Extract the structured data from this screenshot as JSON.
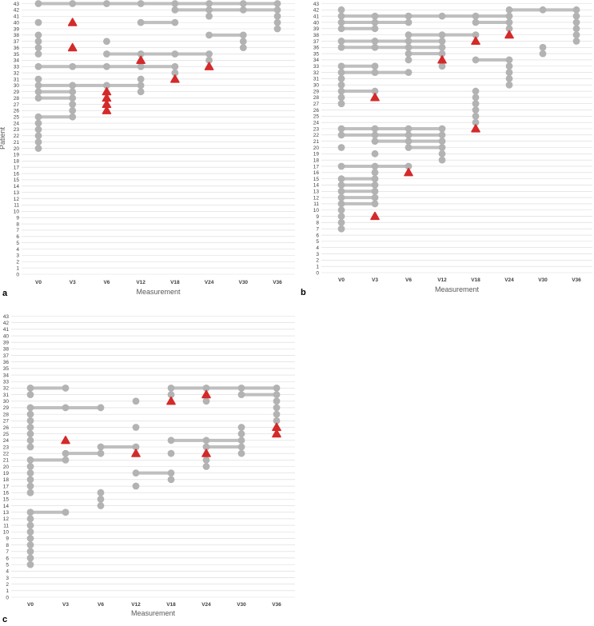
{
  "chart_data": [
    {
      "type": "scatter",
      "panel_label": "a",
      "ylabel": "Patient",
      "xlabel": "Measurement",
      "categories": [
        "V0",
        "V3",
        "V6",
        "V12",
        "V18",
        "V24",
        "V30",
        "V36"
      ],
      "ylim": [
        0,
        43
      ],
      "segments": [
        [
          43,
          0,
          7
        ],
        [
          42,
          4,
          7
        ],
        [
          40,
          3,
          4
        ],
        [
          38,
          5,
          6
        ],
        [
          35,
          2,
          5
        ],
        [
          33,
          0,
          4
        ],
        [
          30,
          0,
          3
        ],
        [
          29,
          0,
          1
        ],
        [
          28,
          0,
          1
        ],
        [
          25,
          0,
          1
        ]
      ],
      "points": [
        [
          43,
          0
        ],
        [
          43,
          1
        ],
        [
          43,
          2
        ],
        [
          43,
          3
        ],
        [
          43,
          4
        ],
        [
          43,
          5
        ],
        [
          43,
          6
        ],
        [
          43,
          7
        ],
        [
          42,
          4
        ],
        [
          42,
          5
        ],
        [
          42,
          6
        ],
        [
          42,
          7
        ],
        [
          41,
          5
        ],
        [
          41,
          7
        ],
        [
          40,
          0
        ],
        [
          40,
          3
        ],
        [
          40,
          4
        ],
        [
          40,
          7
        ],
        [
          39,
          7
        ],
        [
          38,
          0
        ],
        [
          38,
          5
        ],
        [
          38,
          6
        ],
        [
          37,
          0
        ],
        [
          37,
          2
        ],
        [
          37,
          6
        ],
        [
          36,
          0
        ],
        [
          36,
          6
        ],
        [
          35,
          0
        ],
        [
          35,
          2
        ],
        [
          35,
          3
        ],
        [
          35,
          4
        ],
        [
          35,
          5
        ],
        [
          34,
          5
        ],
        [
          33,
          0
        ],
        [
          33,
          1
        ],
        [
          33,
          2
        ],
        [
          33,
          3
        ],
        [
          33,
          4
        ],
        [
          32,
          4
        ],
        [
          31,
          0
        ],
        [
          31,
          3
        ],
        [
          30,
          0
        ],
        [
          30,
          1
        ],
        [
          30,
          2
        ],
        [
          30,
          3
        ],
        [
          29,
          0
        ],
        [
          29,
          1
        ],
        [
          29,
          3
        ],
        [
          28,
          0
        ],
        [
          28,
          1
        ],
        [
          27,
          1
        ],
        [
          26,
          1
        ],
        [
          25,
          0
        ],
        [
          25,
          1
        ],
        [
          24,
          0
        ],
        [
          23,
          0
        ],
        [
          22,
          0
        ],
        [
          21,
          0
        ],
        [
          20,
          0
        ]
      ],
      "events": [
        [
          40,
          1
        ],
        [
          36,
          1
        ],
        [
          34,
          3
        ],
        [
          33,
          5
        ],
        [
          31,
          4
        ],
        [
          29,
          2
        ],
        [
          28,
          2
        ],
        [
          27,
          2
        ],
        [
          26,
          2
        ]
      ]
    },
    {
      "type": "scatter",
      "panel_label": "b",
      "ylabel": "",
      "xlabel": "Measurement",
      "categories": [
        "V0",
        "V3",
        "V6",
        "V12",
        "V18",
        "V24",
        "V30",
        "V36"
      ],
      "ylim": [
        0,
        43
      ],
      "segments": [
        [
          42,
          5,
          7
        ],
        [
          41,
          0,
          5
        ],
        [
          40,
          0,
          2
        ],
        [
          40,
          4,
          5
        ],
        [
          39,
          0,
          1
        ],
        [
          38,
          2,
          4
        ],
        [
          37,
          0,
          3
        ],
        [
          36,
          0,
          3
        ],
        [
          35,
          2,
          3
        ],
        [
          34,
          4,
          5
        ],
        [
          33,
          0,
          1
        ],
        [
          32,
          0,
          2
        ],
        [
          29,
          0,
          1
        ],
        [
          23,
          0,
          3
        ],
        [
          22,
          0,
          3
        ],
        [
          21,
          1,
          3
        ],
        [
          20,
          2,
          3
        ],
        [
          17,
          0,
          2
        ],
        [
          15,
          0,
          1
        ],
        [
          14,
          0,
          1
        ],
        [
          13,
          0,
          1
        ],
        [
          12,
          0,
          1
        ],
        [
          11,
          0,
          1
        ]
      ],
      "points": [
        [
          42,
          0
        ],
        [
          42,
          5
        ],
        [
          42,
          6
        ],
        [
          42,
          7
        ],
        [
          41,
          0
        ],
        [
          41,
          1
        ],
        [
          41,
          2
        ],
        [
          41,
          3
        ],
        [
          41,
          4
        ],
        [
          41,
          5
        ],
        [
          41,
          7
        ],
        [
          40,
          0
        ],
        [
          40,
          1
        ],
        [
          40,
          2
        ],
        [
          40,
          4
        ],
        [
          40,
          5
        ],
        [
          40,
          7
        ],
        [
          39,
          0
        ],
        [
          39,
          1
        ],
        [
          39,
          5
        ],
        [
          39,
          7
        ],
        [
          38,
          2
        ],
        [
          38,
          3
        ],
        [
          38,
          4
        ],
        [
          38,
          7
        ],
        [
          37,
          0
        ],
        [
          37,
          1
        ],
        [
          37,
          2
        ],
        [
          37,
          3
        ],
        [
          37,
          7
        ],
        [
          36,
          0
        ],
        [
          36,
          1
        ],
        [
          36,
          2
        ],
        [
          36,
          3
        ],
        [
          36,
          6
        ],
        [
          35,
          2
        ],
        [
          35,
          3
        ],
        [
          35,
          6
        ],
        [
          34,
          2
        ],
        [
          34,
          4
        ],
        [
          34,
          5
        ],
        [
          33,
          0
        ],
        [
          33,
          1
        ],
        [
          33,
          3
        ],
        [
          33,
          5
        ],
        [
          32,
          0
        ],
        [
          32,
          1
        ],
        [
          32,
          2
        ],
        [
          32,
          5
        ],
        [
          31,
          0
        ],
        [
          31,
          5
        ],
        [
          30,
          0
        ],
        [
          30,
          5
        ],
        [
          29,
          0
        ],
        [
          29,
          1
        ],
        [
          29,
          4
        ],
        [
          28,
          0
        ],
        [
          28,
          4
        ],
        [
          27,
          0
        ],
        [
          27,
          4
        ],
        [
          26,
          4
        ],
        [
          25,
          4
        ],
        [
          24,
          4
        ],
        [
          23,
          0
        ],
        [
          23,
          1
        ],
        [
          23,
          2
        ],
        [
          23,
          3
        ],
        [
          22,
          0
        ],
        [
          22,
          1
        ],
        [
          22,
          2
        ],
        [
          22,
          3
        ],
        [
          21,
          1
        ],
        [
          21,
          2
        ],
        [
          21,
          3
        ],
        [
          20,
          0
        ],
        [
          20,
          2
        ],
        [
          20,
          3
        ],
        [
          19,
          1
        ],
        [
          19,
          3
        ],
        [
          18,
          3
        ],
        [
          17,
          0
        ],
        [
          17,
          1
        ],
        [
          17,
          2
        ],
        [
          16,
          1
        ],
        [
          15,
          0
        ],
        [
          15,
          1
        ],
        [
          14,
          0
        ],
        [
          14,
          1
        ],
        [
          13,
          0
        ],
        [
          13,
          1
        ],
        [
          12,
          0
        ],
        [
          12,
          1
        ],
        [
          11,
          0
        ],
        [
          11,
          1
        ],
        [
          10,
          0
        ],
        [
          9,
          0
        ],
        [
          8,
          0
        ],
        [
          7,
          0
        ]
      ],
      "events": [
        [
          38,
          5
        ],
        [
          37,
          4
        ],
        [
          34,
          3
        ],
        [
          28,
          1
        ],
        [
          23,
          4
        ],
        [
          16,
          2
        ],
        [
          9,
          1
        ]
      ]
    },
    {
      "type": "scatter",
      "panel_label": "c",
      "ylabel": "",
      "xlabel": "Measurement",
      "categories": [
        "V0",
        "V3",
        "V6",
        "V12",
        "V18",
        "V24",
        "V30",
        "V36"
      ],
      "ylim": [
        0,
        43
      ],
      "segments": [
        [
          32,
          0,
          1
        ],
        [
          32,
          4,
          7
        ],
        [
          31,
          6,
          7
        ],
        [
          29,
          0,
          2
        ],
        [
          24,
          4,
          6
        ],
        [
          23,
          2,
          3
        ],
        [
          23,
          5,
          6
        ],
        [
          22,
          1,
          2
        ],
        [
          21,
          0,
          1
        ],
        [
          19,
          3,
          4
        ],
        [
          13,
          0,
          1
        ]
      ],
      "points": [
        [
          32,
          0
        ],
        [
          32,
          1
        ],
        [
          32,
          4
        ],
        [
          32,
          5
        ],
        [
          32,
          6
        ],
        [
          32,
          7
        ],
        [
          31,
          0
        ],
        [
          31,
          4
        ],
        [
          31,
          6
        ],
        [
          31,
          7
        ],
        [
          30,
          3
        ],
        [
          30,
          5
        ],
        [
          30,
          7
        ],
        [
          29,
          0
        ],
        [
          29,
          1
        ],
        [
          29,
          2
        ],
        [
          29,
          7
        ],
        [
          28,
          0
        ],
        [
          28,
          7
        ],
        [
          27,
          0
        ],
        [
          27,
          7
        ],
        [
          26,
          0
        ],
        [
          26,
          3
        ],
        [
          26,
          6
        ],
        [
          25,
          0
        ],
        [
          25,
          6
        ],
        [
          24,
          0
        ],
        [
          24,
          4
        ],
        [
          24,
          5
        ],
        [
          24,
          6
        ],
        [
          23,
          0
        ],
        [
          23,
          2
        ],
        [
          23,
          3
        ],
        [
          23,
          5
        ],
        [
          23,
          6
        ],
        [
          22,
          1
        ],
        [
          22,
          2
        ],
        [
          22,
          4
        ],
        [
          22,
          6
        ],
        [
          21,
          0
        ],
        [
          21,
          1
        ],
        [
          21,
          5
        ],
        [
          20,
          0
        ],
        [
          20,
          5
        ],
        [
          19,
          0
        ],
        [
          19,
          3
        ],
        [
          19,
          4
        ],
        [
          18,
          0
        ],
        [
          18,
          4
        ],
        [
          17,
          0
        ],
        [
          17,
          3
        ],
        [
          16,
          0
        ],
        [
          16,
          2
        ],
        [
          15,
          2
        ],
        [
          14,
          2
        ],
        [
          13,
          0
        ],
        [
          13,
          1
        ],
        [
          12,
          0
        ],
        [
          11,
          0
        ],
        [
          10,
          0
        ],
        [
          9,
          0
        ],
        [
          8,
          0
        ],
        [
          7,
          0
        ],
        [
          6,
          0
        ],
        [
          5,
          0
        ]
      ],
      "events": [
        [
          31,
          5
        ],
        [
          30,
          4
        ],
        [
          26,
          7
        ],
        [
          25,
          7
        ],
        [
          24,
          1
        ],
        [
          22,
          3
        ],
        [
          22,
          5
        ]
      ]
    }
  ],
  "colors": {
    "line": "#bfbfbf",
    "point": "#b3b3b3",
    "event": "#d42a2a",
    "grid": "#d9d9d9",
    "text": "#404040"
  }
}
